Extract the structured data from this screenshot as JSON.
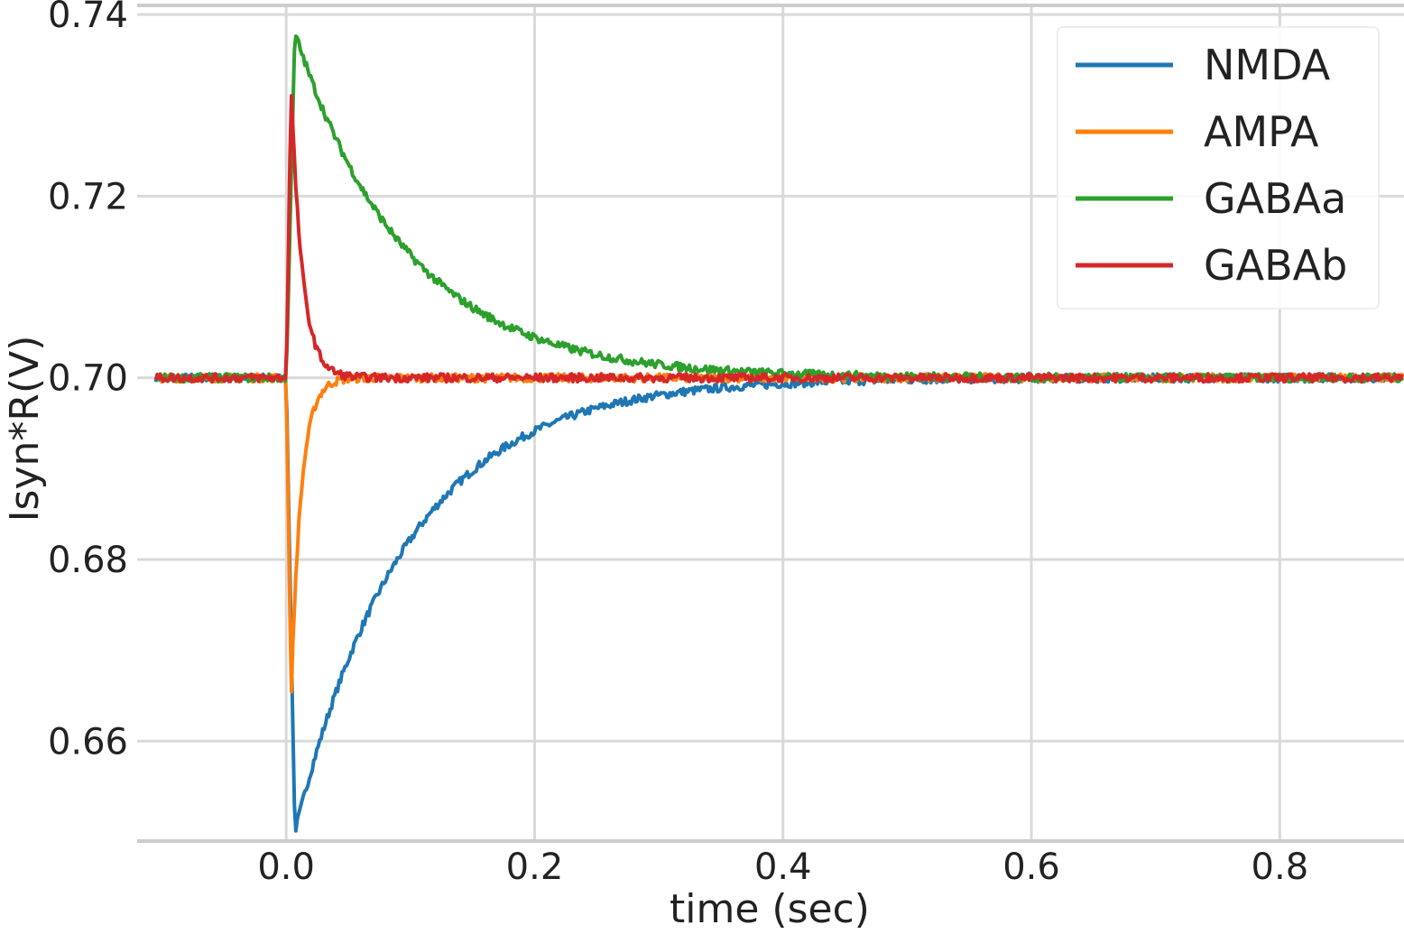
{
  "chart_data": {
    "type": "line",
    "xlabel": "time (sec)",
    "ylabel": "Isyn*R(V)",
    "xlim": [
      -0.12,
      0.9
    ],
    "ylim": [
      0.649,
      0.741
    ],
    "xticks": [
      0.0,
      0.2,
      0.4,
      0.6,
      0.8
    ],
    "xtick_labels": [
      "0.0",
      "0.2",
      "0.4",
      "0.6",
      "0.8"
    ],
    "yticks": [
      0.66,
      0.68,
      0.7,
      0.72,
      0.74
    ],
    "ytick_labels": [
      "0.66",
      "0.68",
      "0.70",
      "0.72",
      "0.74"
    ],
    "grid": true,
    "legend_position": "top-right",
    "baseline": 0.7,
    "series": [
      {
        "name": "NMDA",
        "color": "#1f77b4",
        "onset": 0.0,
        "peak_time": 0.007,
        "peak": 0.65,
        "decay_tau_sec": 0.09
      },
      {
        "name": "AMPA",
        "color": "#ff7f0e",
        "onset": 0.0,
        "peak_time": 0.004,
        "peak": 0.665,
        "decay_tau_sec": 0.008
      },
      {
        "name": "GABAa",
        "color": "#2ca02c",
        "onset": 0.0,
        "peak_time": 0.007,
        "peak": 0.738,
        "decay_tau_sec": 0.09
      },
      {
        "name": "GABAb",
        "color": "#d62728",
        "onset": 0.0,
        "peak_time": 0.004,
        "peak": 0.732,
        "decay_tau_sec": 0.009
      }
    ]
  }
}
